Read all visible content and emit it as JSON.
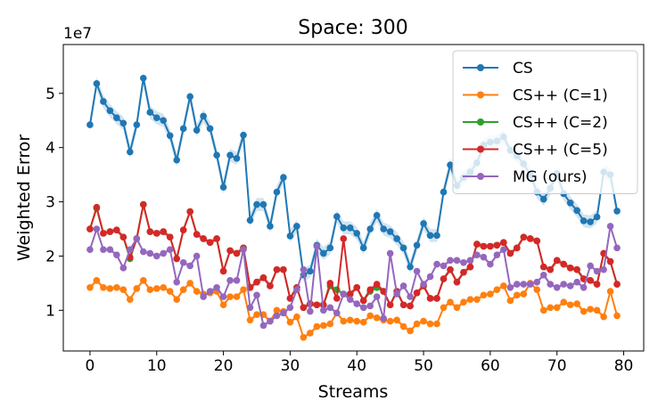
{
  "chart_data": {
    "type": "line",
    "title": "Space: 300",
    "xlabel": "Streams",
    "ylabel": "Weighted Error",
    "y_scale_label": "1e7",
    "xlim": [
      -4,
      83
    ],
    "ylim": [
      0.25,
      5.9
    ],
    "xticks": [
      0,
      10,
      20,
      30,
      40,
      50,
      60,
      70,
      80
    ],
    "xtick_labels": [
      "0",
      "10",
      "20",
      "30",
      "40",
      "50",
      "60",
      "70",
      "80"
    ],
    "yticks": [
      1,
      2,
      3,
      4,
      5
    ],
    "ytick_labels": [
      "1",
      "2",
      "3",
      "4",
      "5"
    ],
    "legend_position": "top-right",
    "x": [
      0,
      1,
      2,
      3,
      4,
      5,
      6,
      7,
      8,
      9,
      10,
      11,
      12,
      13,
      14,
      15,
      16,
      17,
      18,
      19,
      20,
      21,
      22,
      23,
      24,
      25,
      26,
      27,
      28,
      29,
      30,
      31,
      32,
      33,
      34,
      35,
      36,
      37,
      38,
      39,
      40,
      41,
      42,
      43,
      44,
      45,
      46,
      47,
      48,
      49,
      50,
      51,
      52,
      53,
      54,
      55,
      56,
      57,
      58,
      59,
      60,
      61,
      62,
      63,
      64,
      65,
      66,
      67,
      68,
      69,
      70,
      71,
      72,
      73,
      74,
      75,
      76,
      77,
      78,
      79
    ],
    "series": [
      {
        "name": "CS",
        "label": "CS",
        "color": "#1f77b4",
        "band": 0.12,
        "values": [
          4.42,
          5.18,
          4.85,
          4.68,
          4.55,
          4.45,
          3.92,
          4.42,
          5.28,
          4.65,
          4.55,
          4.5,
          4.22,
          3.77,
          4.35,
          4.94,
          4.32,
          4.58,
          4.35,
          3.86,
          3.27,
          3.86,
          3.8,
          4.23,
          2.66,
          2.95,
          2.95,
          2.55,
          3.18,
          3.45,
          2.37,
          2.55,
          1.65,
          1.72,
          2.2,
          2.05,
          2.15,
          2.73,
          2.52,
          2.52,
          2.42,
          2.15,
          2.5,
          2.75,
          2.5,
          2.45,
          2.32,
          2.15,
          1.8,
          2.2,
          2.6,
          2.38,
          2.38,
          3.18,
          3.68,
          3.3,
          3.45,
          3.55,
          3.72,
          4.05,
          4.1,
          4.12,
          4.2,
          3.95,
          3.85,
          3.7,
          3.5,
          3.18,
          3.05,
          3.25,
          3.52,
          3.15,
          2.98,
          2.84,
          2.65,
          2.63,
          2.72,
          3.55,
          3.5,
          2.83
        ]
      },
      {
        "name": "CS++ (C=1)",
        "label": "CS++ (C=1)",
        "color": "#ff7f0e",
        "band": 0.04,
        "values": [
          1.42,
          1.55,
          1.42,
          1.4,
          1.42,
          1.38,
          1.2,
          1.4,
          1.55,
          1.38,
          1.4,
          1.42,
          1.35,
          1.2,
          1.38,
          1.5,
          1.35,
          1.3,
          1.32,
          1.35,
          1.1,
          1.25,
          1.25,
          1.38,
          0.82,
          0.92,
          0.92,
          0.8,
          1.0,
          0.98,
          0.78,
          0.88,
          0.5,
          0.58,
          0.7,
          0.72,
          0.75,
          0.95,
          0.8,
          0.82,
          0.8,
          0.78,
          0.9,
          0.86,
          0.82,
          0.8,
          0.82,
          0.7,
          0.62,
          0.75,
          0.8,
          0.75,
          0.75,
          1.05,
          1.15,
          1.05,
          1.15,
          1.2,
          1.2,
          1.28,
          1.3,
          1.38,
          1.45,
          1.18,
          1.28,
          1.3,
          1.5,
          1.38,
          1.0,
          1.05,
          1.05,
          1.15,
          1.1,
          1.12,
          0.98,
          1.02,
          1.0,
          0.88,
          1.35,
          0.9
        ]
      },
      {
        "name": "CS++ (C=2)",
        "label": "CS++ (C=2)",
        "color": "#2ca02c",
        "band": 0.04,
        "values": [
          2.5,
          2.88,
          2.42,
          2.45,
          2.48,
          2.35,
          1.95,
          2.32,
          2.95,
          2.45,
          2.42,
          2.45,
          2.35,
          1.95,
          2.48,
          2.82,
          2.4,
          2.32,
          2.25,
          2.32,
          1.72,
          2.1,
          2.05,
          2.15,
          1.42,
          1.52,
          1.6,
          1.45,
          1.75,
          1.75,
          1.22,
          1.42,
          1.05,
          1.12,
          1.1,
          1.1,
          1.45,
          1.38,
          1.3,
          1.3,
          1.42,
          1.18,
          1.35,
          1.42,
          1.35,
          1.1,
          1.35,
          1.1,
          1.08,
          1.32,
          1.45,
          1.22,
          1.22,
          1.58,
          1.75,
          1.52,
          1.7,
          1.8,
          2.22,
          2.18,
          2.18,
          2.2,
          2.25,
          2.05,
          2.15,
          2.35,
          2.32,
          2.28,
          1.8,
          1.75,
          1.92,
          1.85,
          1.78,
          1.75,
          1.58,
          1.55,
          1.48,
          2.05,
          1.9,
          1.48
        ]
      },
      {
        "name": "CS++ (C=5)",
        "label": "CS++ (C=5)",
        "color": "#d62728",
        "band": 0.05,
        "values": [
          2.5,
          2.9,
          2.42,
          2.45,
          2.48,
          2.35,
          1.98,
          2.32,
          2.95,
          2.45,
          2.42,
          2.45,
          2.35,
          1.95,
          2.48,
          2.82,
          2.4,
          2.32,
          2.25,
          2.32,
          1.72,
          2.1,
          2.05,
          2.15,
          1.42,
          1.52,
          1.6,
          1.45,
          1.75,
          1.75,
          1.22,
          1.42,
          1.05,
          1.12,
          1.1,
          1.1,
          1.5,
          1.22,
          2.32,
          1.3,
          1.42,
          1.18,
          1.38,
          1.48,
          1.35,
          1.1,
          1.35,
          1.1,
          1.08,
          1.32,
          1.45,
          1.22,
          1.22,
          1.58,
          1.75,
          1.52,
          1.7,
          1.8,
          2.22,
          2.18,
          2.18,
          2.2,
          2.25,
          2.05,
          2.15,
          2.35,
          2.32,
          2.28,
          1.8,
          1.75,
          1.92,
          1.85,
          1.78,
          1.75,
          1.58,
          1.55,
          1.48,
          2.05,
          1.9,
          1.48
        ]
      },
      {
        "name": "MG (ours)",
        "label": "MG (ours)",
        "color": "#9467bd",
        "band": 0.04,
        "values": [
          2.12,
          2.5,
          2.12,
          2.12,
          2.02,
          1.78,
          2.12,
          2.32,
          2.08,
          2.05,
          2.0,
          2.05,
          2.12,
          1.52,
          1.88,
          1.82,
          2.0,
          1.25,
          1.35,
          1.42,
          1.25,
          1.55,
          1.55,
          2.12,
          1.05,
          1.28,
          0.72,
          0.8,
          0.9,
          0.95,
          1.05,
          1.38,
          1.75,
          0.98,
          2.18,
          1.0,
          1.05,
          0.95,
          1.3,
          1.2,
          1.12,
          1.05,
          1.08,
          1.25,
          0.85,
          2.05,
          1.3,
          1.45,
          1.25,
          1.72,
          1.48,
          1.62,
          1.85,
          1.82,
          1.92,
          1.92,
          1.88,
          1.92,
          2.02,
          1.98,
          1.85,
          2.02,
          2.12,
          1.42,
          1.48,
          1.48,
          1.48,
          1.52,
          1.65,
          1.48,
          1.42,
          1.48,
          1.45,
          1.52,
          1.42,
          1.82,
          1.72,
          1.75,
          2.55,
          2.15
        ]
      }
    ]
  }
}
